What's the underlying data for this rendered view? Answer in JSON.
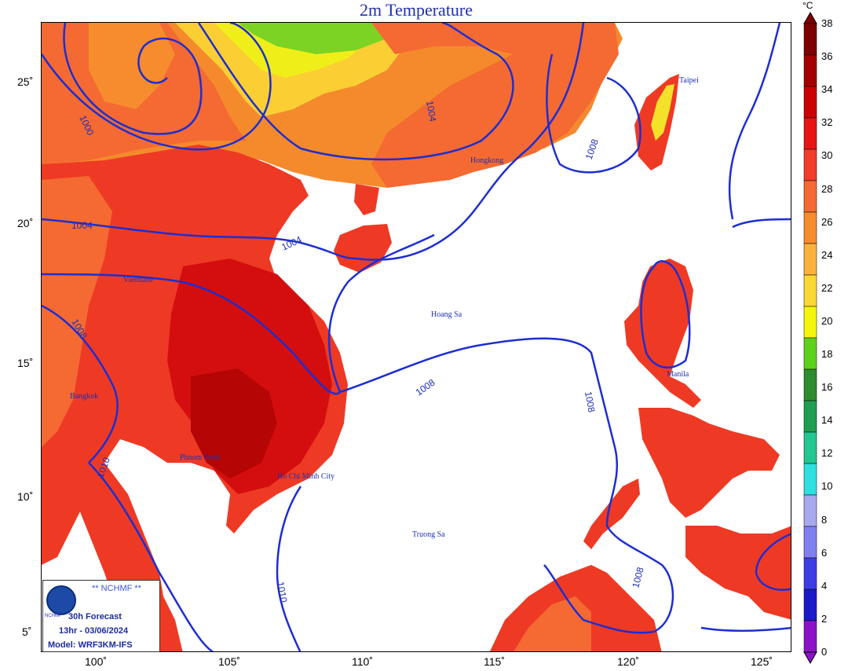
{
  "title": "2m Temperature",
  "unit": "°C",
  "legend": {
    "ticks": [
      "38",
      "36",
      "34",
      "32",
      "30",
      "28",
      "26",
      "24",
      "22",
      "20",
      "18",
      "16",
      "14",
      "12",
      "10",
      "8",
      "6",
      "4",
      "2",
      "0"
    ],
    "colors": [
      "#7e0000",
      "#a50000",
      "#cc0000",
      "#e81414",
      "#f03c28",
      "#f46a32",
      "#f78c2e",
      "#fbb13c",
      "#fbd735",
      "#f4f50a",
      "#5ed11a",
      "#2e8b2e",
      "#1e9e50",
      "#21c690",
      "#2fe0e0",
      "#a8a8ef",
      "#7f7ff2",
      "#3d3de6",
      "#1a1ac8",
      "#8b12c8"
    ]
  },
  "axes": {
    "x_ticks": [
      "100˚",
      "105˚",
      "110˚",
      "115˚",
      "120˚",
      "125˚"
    ],
    "y_ticks": [
      "25˚",
      "20˚",
      "15˚",
      "10˚",
      "5˚"
    ]
  },
  "isobars": [
    "1000",
    "1004",
    "1004",
    "1004",
    "1008",
    "1008",
    "1008",
    "1008",
    "1008",
    "1010",
    "1010"
  ],
  "cities": [
    "Taipei",
    "Hongkong",
    "Hoang Sa",
    "Manila",
    "Bangkok",
    "Ho Chi Minh City",
    "Truong Sa",
    "Vientiane",
    "Phnom Penh"
  ],
  "logo": {
    "org": "** NCHMF **",
    "small": "NCHMF",
    "forecast": "30h Forecast",
    "time": "13hr - 03/06/2024",
    "model": "Model: WRF3KM-IFS"
  }
}
